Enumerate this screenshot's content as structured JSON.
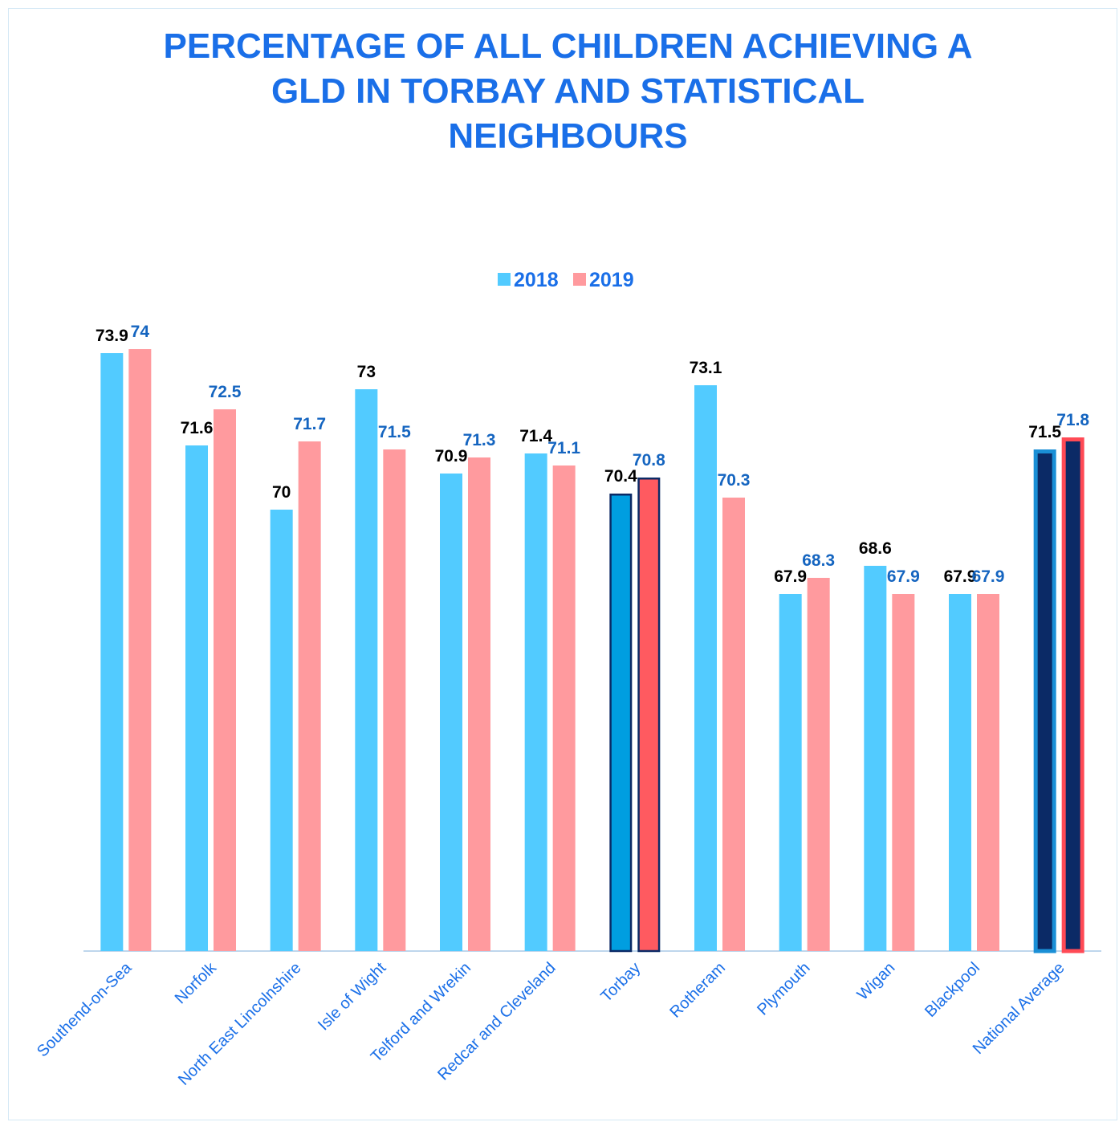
{
  "chart_data": {
    "type": "bar",
    "title_lines": [
      "PERCENTAGE OF ALL CHILDREN ACHIEVING A",
      "GLD IN TORBAY AND STATISTICAL",
      "NEIGHBOURS"
    ],
    "categories": [
      "Southend-on-Sea",
      "Norfolk",
      "North East Lincolnshire",
      "Isle of Wight",
      "Telford and Wrekin",
      "Redcar and Cleveland",
      "Torbay",
      "Rotheram",
      "Plymouth",
      "Wigan",
      "Blackpool",
      "National Average"
    ],
    "series": [
      {
        "name": "2018",
        "values": [
          73.9,
          71.6,
          70,
          73,
          70.9,
          71.4,
          70.4,
          73.1,
          67.9,
          68.6,
          67.9,
          71.5
        ],
        "color": "#52cbff",
        "label_color": "#000000"
      },
      {
        "name": "2019",
        "values": [
          74,
          72.5,
          71.7,
          71.5,
          71.3,
          71.1,
          70.8,
          70.3,
          68.3,
          67.9,
          67.9,
          71.8
        ],
        "color": "#ff9a9e",
        "label_color": "#1565c0"
      }
    ],
    "value_labels": [
      [
        "73.9",
        "71.6",
        "70",
        "73",
        "70.9",
        "71.4",
        "70.4",
        "73.1",
        "67.9",
        "68.6",
        "67.9",
        "71.5"
      ],
      [
        "74",
        "72.5",
        "71.7",
        "71.5",
        "71.3",
        "71.1",
        "70.8",
        "70.3",
        "68.3",
        "67.9",
        "67.9",
        "71.8"
      ]
    ],
    "highlights": {
      "Torbay": {
        "colors": [
          "#009ee0",
          "#ff5a60"
        ],
        "border": "#0b2a66"
      },
      "National Average": {
        "colors": [
          "#0b2a66",
          "#0b2a66"
        ],
        "borders": [
          "#1a8fd6",
          "#ff4a55"
        ]
      }
    },
    "ylim": [
      59,
      75
    ],
    "legend_position": "top-center",
    "grid": false,
    "category_label_color": "#1a6fe8"
  }
}
